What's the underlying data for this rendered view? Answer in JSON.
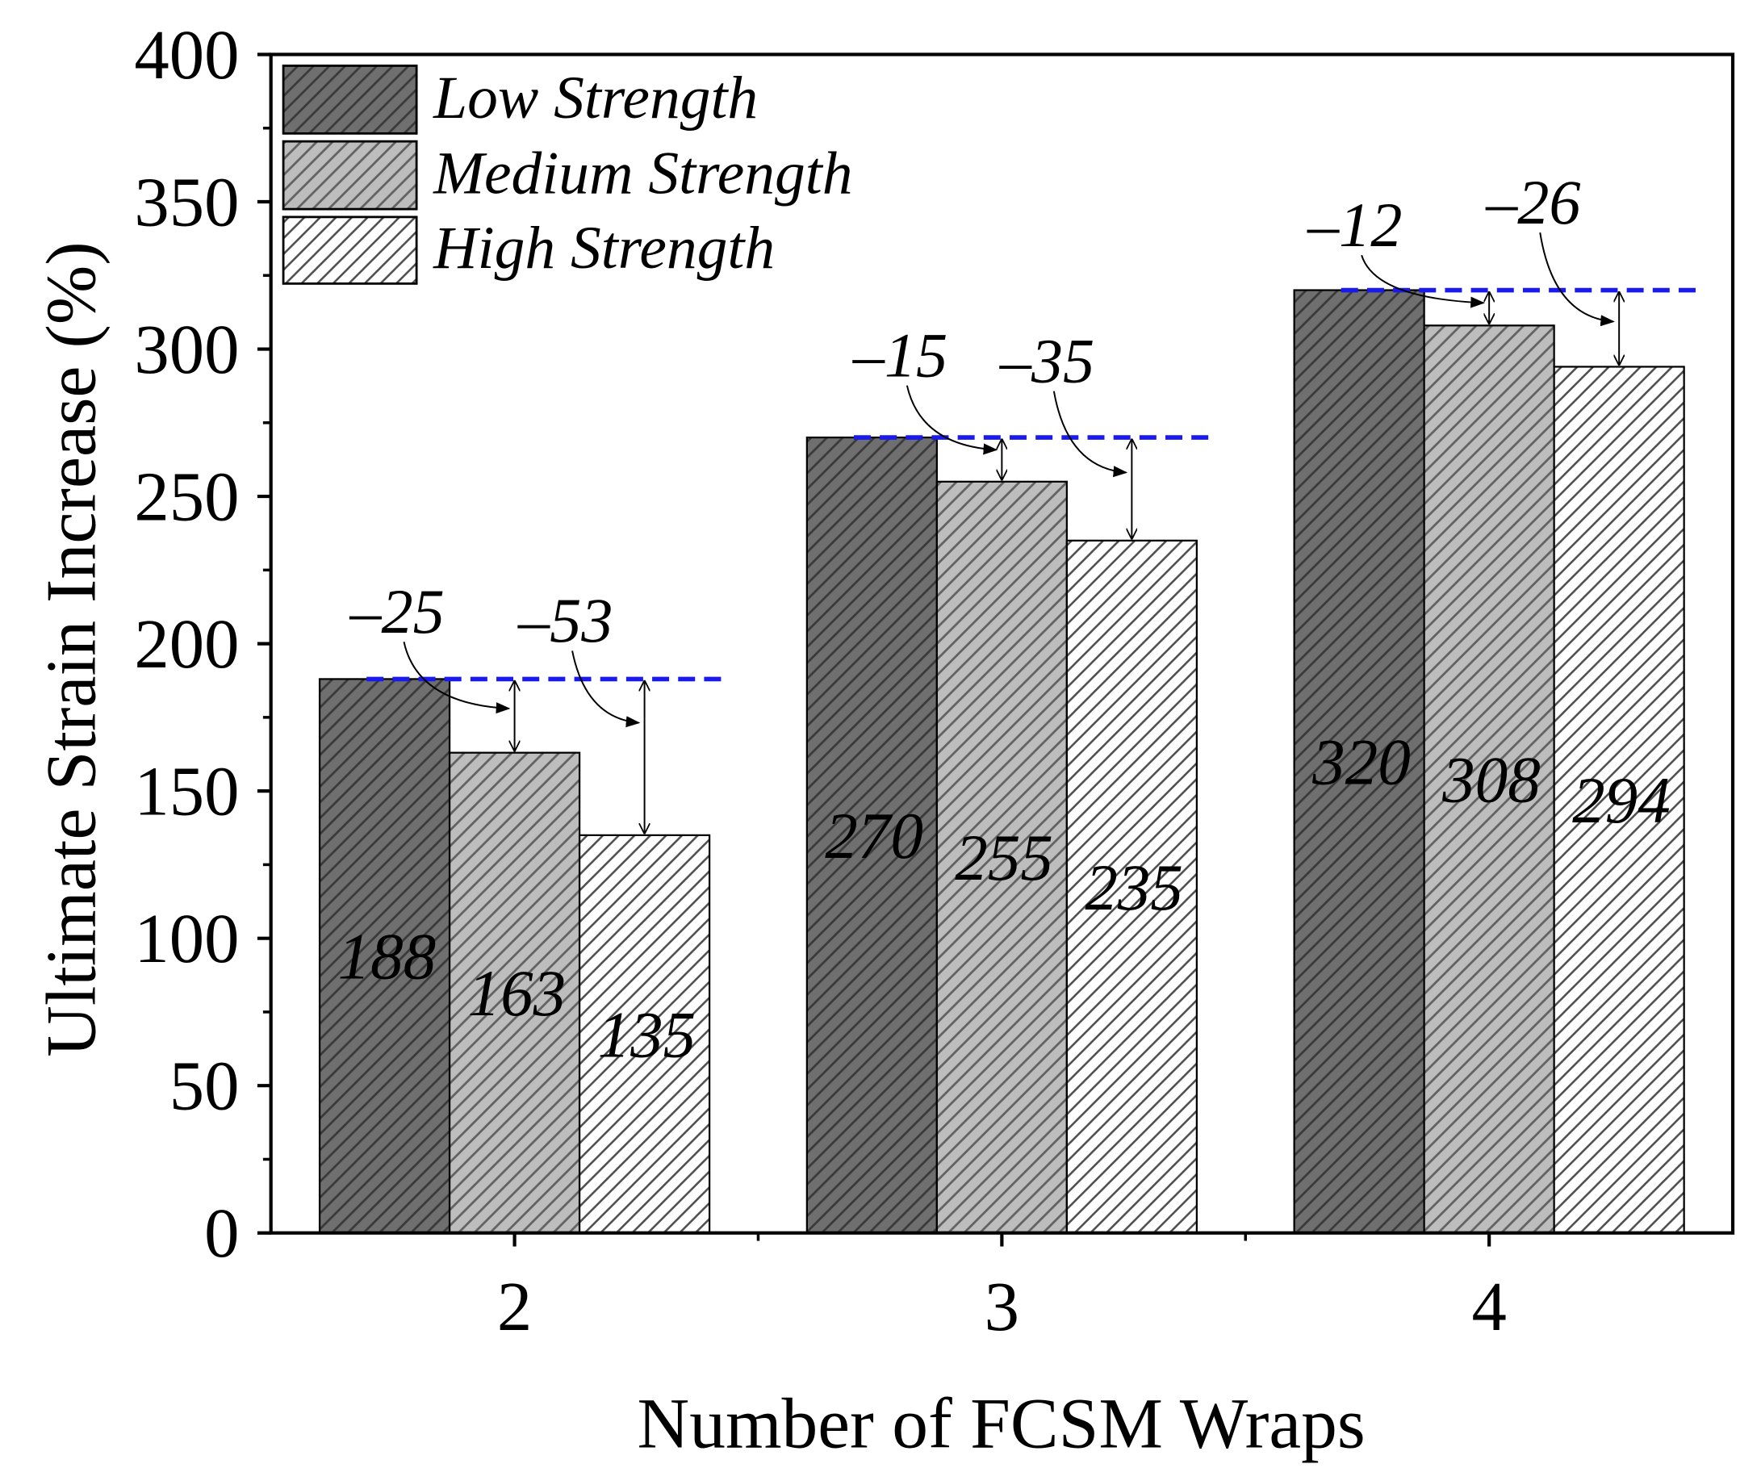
{
  "chart_data": {
    "type": "bar",
    "categories": [
      "2",
      "3",
      "4"
    ],
    "x": [
      2,
      3,
      4
    ],
    "xlim": [
      1.5,
      4.5
    ],
    "xlabel": "Number of FCSM Wraps",
    "ylabel": "Ultimate Strain Increase (%)",
    "ylim": [
      0,
      400
    ],
    "yticks": [
      0,
      50,
      100,
      150,
      200,
      250,
      300,
      350,
      400
    ],
    "grid": false,
    "legend": "top-left",
    "series": [
      {
        "name": "Low Strength",
        "values": [
          188,
          270,
          320
        ],
        "fill": "#6f6f6f",
        "hatch_color": "#3a3a3a"
      },
      {
        "name": "Medium Strength",
        "values": [
          163,
          255,
          308
        ],
        "fill": "#bdbdbd",
        "hatch_color": "#626262"
      },
      {
        "name": "High Strength",
        "values": [
          135,
          235,
          294
        ],
        "fill": "#ffffff",
        "hatch_color": "#4e4e4e"
      }
    ],
    "reference_line": {
      "series_index": 0,
      "color": "#1a1aee"
    },
    "annotations": [
      {
        "group": 0,
        "series_index": 1,
        "text": "–25"
      },
      {
        "group": 0,
        "series_index": 2,
        "text": "–53"
      },
      {
        "group": 1,
        "series_index": 1,
        "text": "–15"
      },
      {
        "group": 1,
        "series_index": 2,
        "text": "–35"
      },
      {
        "group": 2,
        "series_index": 1,
        "text": "–12"
      },
      {
        "group": 2,
        "series_index": 2,
        "text": "–26"
      }
    ]
  }
}
